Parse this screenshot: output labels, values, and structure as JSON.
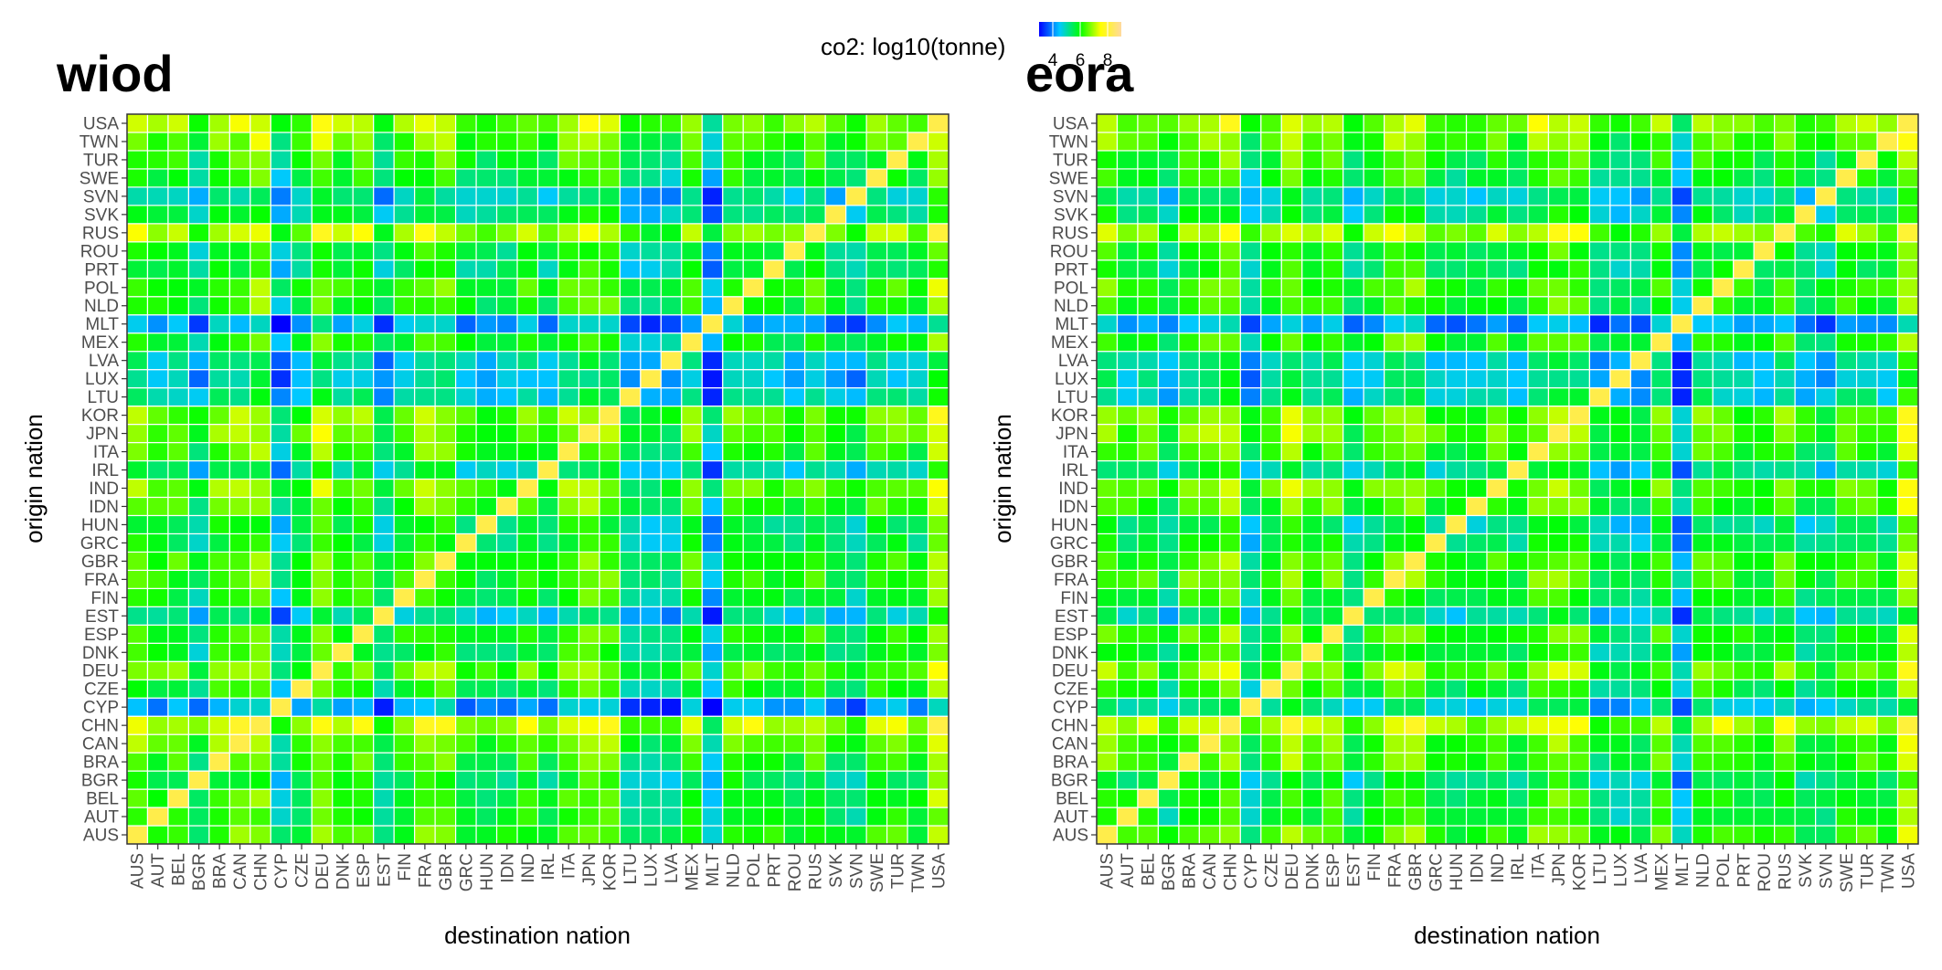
{
  "legend": {
    "title": "co2: log10(tonne)",
    "ticks": [
      4,
      6,
      8
    ],
    "range": [
      3,
      9
    ],
    "colors": [
      "#0000ff",
      "#00c8ff",
      "#00ff00",
      "#ffff00",
      "#ffd9a0"
    ]
  },
  "chart_data": [
    {
      "type": "heatmap",
      "title": "wiod",
      "xlabel": "destination nation",
      "ylabel": "origin nation",
      "nations": [
        "AUS",
        "AUT",
        "BEL",
        "BGR",
        "BRA",
        "CAN",
        "CHN",
        "CYP",
        "CZE",
        "DEU",
        "DNK",
        "ESP",
        "EST",
        "FIN",
        "FRA",
        "GBR",
        "GRC",
        "HUN",
        "IDN",
        "IND",
        "IRL",
        "ITA",
        "JPN",
        "KOR",
        "LTU",
        "LUX",
        "LVA",
        "MEX",
        "MLT",
        "NLD",
        "POL",
        "PRT",
        "ROU",
        "RUS",
        "SVK",
        "SVN",
        "SWE",
        "TUR",
        "TWN",
        "USA"
      ],
      "origin_levels": {
        "AUS": 6.3,
        "AUT": 6.0,
        "BEL": 6.1,
        "BGR": 5.7,
        "BRA": 6.2,
        "CAN": 6.5,
        "CHN": 7.3,
        "CYP": 4.3,
        "CZE": 6.0,
        "DEU": 6.6,
        "DNK": 5.8,
        "ESP": 6.1,
        "EST": 5.0,
        "FIN": 5.9,
        "FRA": 6.2,
        "GBR": 6.3,
        "GRC": 5.7,
        "HUN": 5.6,
        "IDN": 6.3,
        "IND": 6.6,
        "IRL": 5.2,
        "ITA": 6.2,
        "JPN": 6.6,
        "KOR": 6.6,
        "LTU": 5.1,
        "LUX": 4.8,
        "LVA": 5.0,
        "MEX": 6.0,
        "MLT": 4.4,
        "NLD": 6.1,
        "POL": 6.3,
        "PRT": 5.6,
        "ROU": 5.8,
        "RUS": 7.0,
        "SVK": 5.5,
        "SVN": 5.0,
        "SWE": 5.9,
        "TUR": 6.1,
        "TWN": 6.5,
        "USA": 6.9
      },
      "destination_levels": {
        "AUS": 0.3,
        "AUT": -0.1,
        "BEL": 0.0,
        "BGR": -0.8,
        "BRA": 0.2,
        "CAN": 0.3,
        "CHN": 0.6,
        "CYP": -1.2,
        "CZE": -0.3,
        "DEU": 0.6,
        "DNK": 0.0,
        "ESP": 0.2,
        "EST": -0.9,
        "FIN": -0.1,
        "FRA": 0.4,
        "GBR": 0.4,
        "GRC": -0.3,
        "HUN": -0.5,
        "IDN": -0.4,
        "IND": 0.0,
        "IRL": -0.4,
        "ITA": 0.3,
        "JPN": 0.5,
        "KOR": 0.3,
        "LTU": -0.9,
        "LUX": -1.0,
        "LVA": -0.9,
        "MEX": 0.1,
        "MLT": -1.6,
        "NLD": 0.1,
        "POL": 0.0,
        "PRT": -0.3,
        "ROU": -0.4,
        "RUS": 0.1,
        "SVK": -0.6,
        "SVN": -0.8,
        "SWE": 0.0,
        "TUR": 0.0,
        "TWN": -0.3,
        "USA": 0.9
      },
      "diagonal_value": 8.2
    },
    {
      "type": "heatmap",
      "title": "eora",
      "xlabel": "destination nation",
      "ylabel": "origin nation",
      "nations": [
        "AUS",
        "AUT",
        "BEL",
        "BGR",
        "BRA",
        "CAN",
        "CHN",
        "CYP",
        "CZE",
        "DEU",
        "DNK",
        "ESP",
        "EST",
        "FIN",
        "FRA",
        "GBR",
        "GRC",
        "HUN",
        "IDN",
        "IND",
        "IRL",
        "ITA",
        "JPN",
        "KOR",
        "LTU",
        "LUX",
        "LVA",
        "MEX",
        "MLT",
        "NLD",
        "POL",
        "PRT",
        "ROU",
        "RUS",
        "SVK",
        "SVN",
        "SWE",
        "TUR",
        "TWN",
        "USA"
      ],
      "origin_levels": {
        "AUS": 6.4,
        "AUT": 5.9,
        "BEL": 6.0,
        "BGR": 5.6,
        "BRA": 6.3,
        "CAN": 6.4,
        "CHN": 7.2,
        "CYP": 5.0,
        "CZE": 6.0,
        "DEU": 6.6,
        "DNK": 5.9,
        "ESP": 6.2,
        "EST": 5.2,
        "FIN": 5.9,
        "FRA": 6.3,
        "GBR": 6.3,
        "GRC": 5.6,
        "HUN": 5.4,
        "IDN": 6.3,
        "IND": 6.6,
        "IRL": 5.3,
        "ITA": 6.3,
        "JPN": 6.6,
        "KOR": 6.6,
        "LTU": 5.1,
        "LUX": 5.0,
        "LVA": 5.0,
        "MEX": 6.2,
        "MLT": 4.4,
        "NLD": 6.1,
        "POL": 6.3,
        "PRT": 5.7,
        "ROU": 5.9,
        "RUS": 7.0,
        "SVK": 5.5,
        "SVN": 5.1,
        "SWE": 5.9,
        "TUR": 6.1,
        "TWN": 6.5,
        "USA": 6.9
      },
      "destination_levels": {
        "AUS": 0.3,
        "AUT": -0.2,
        "BEL": 0.0,
        "BGR": -0.7,
        "BRA": 0.2,
        "CAN": 0.3,
        "CHN": 0.6,
        "CYP": -1.0,
        "CZE": -0.2,
        "DEU": 0.6,
        "DNK": 0.0,
        "ESP": 0.2,
        "EST": -0.8,
        "FIN": -0.1,
        "FRA": 0.4,
        "GBR": 0.4,
        "GRC": -0.3,
        "HUN": -0.5,
        "IDN": -0.4,
        "IND": 0.0,
        "IRL": -0.4,
        "ITA": 0.3,
        "JPN": 0.5,
        "KOR": 0.3,
        "LTU": -0.8,
        "LUX": -0.8,
        "LVA": -0.8,
        "MEX": 0.1,
        "MLT": -1.6,
        "NLD": 0.1,
        "POL": 0.0,
        "PRT": -0.3,
        "ROU": -0.4,
        "RUS": 0.1,
        "SVK": -0.6,
        "SVN": -0.7,
        "SWE": 0.0,
        "TUR": 0.0,
        "TWN": -0.3,
        "USA": 0.9
      },
      "diagonal_value": 8.2
    }
  ]
}
